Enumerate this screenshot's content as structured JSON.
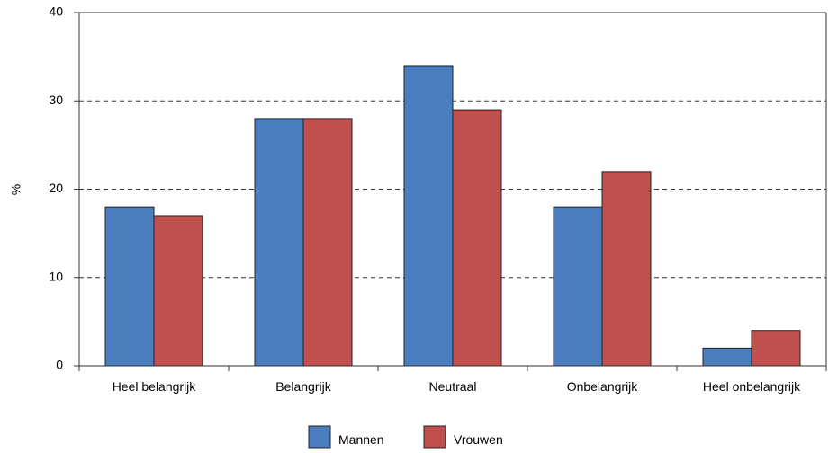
{
  "chart_data": {
    "type": "bar",
    "categories": [
      "Heel belangrijk",
      "Belangrijk",
      "Neutraal",
      "Onbelangrijk",
      "Heel onbelangrijk"
    ],
    "series": [
      {
        "name": "Mannen",
        "values": [
          18,
          28,
          34,
          18,
          2
        ],
        "color": "#4a7ebf"
      },
      {
        "name": "Vrouwen",
        "values": [
          17,
          28,
          29,
          22,
          4
        ],
        "color": "#c0504d"
      }
    ],
    "ylabel": "%",
    "ylim": [
      0,
      40
    ],
    "yticks": [
      0,
      10,
      20,
      30,
      40
    ],
    "grid": "dashed horizontal",
    "legend": "bottom"
  }
}
